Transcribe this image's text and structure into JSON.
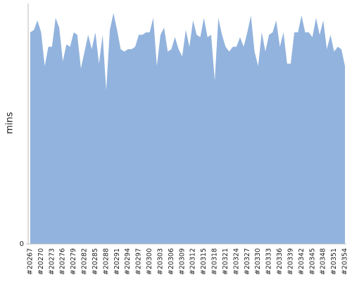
{
  "chart_data": {
    "type": "area",
    "y_label": "mins",
    "color": "#92b3dd",
    "categories": [
      "#20267",
      null,
      null,
      "#20270",
      null,
      null,
      "#20273",
      null,
      null,
      "#20276",
      null,
      null,
      "#20279",
      null,
      null,
      "#20282",
      null,
      null,
      "#20285",
      null,
      null,
      "#20288",
      null,
      null,
      "#20291",
      null,
      null,
      "#20294",
      null,
      null,
      "#20297",
      null,
      null,
      "#20300",
      null,
      null,
      "#20303",
      null,
      null,
      "#20306",
      null,
      null,
      "#20309",
      null,
      null,
      "#20312",
      null,
      null,
      "#20315",
      null,
      null,
      "#20318",
      null,
      null,
      "#20321",
      null,
      null,
      "#20324",
      null,
      null,
      "#20327",
      null,
      null,
      "#20330",
      null,
      null,
      "#20333",
      null,
      null,
      "#20336",
      null,
      null,
      "#20339",
      null,
      null,
      "#20342",
      null,
      null,
      "#20345",
      null,
      null,
      "#20348",
      null,
      null,
      "#20351",
      null,
      null,
      "#20354"
    ],
    "values": [
      88,
      89,
      93,
      88,
      74,
      82,
      82,
      94,
      90,
      76,
      83,
      82,
      88,
      87,
      73,
      80,
      87,
      81,
      88,
      75,
      87,
      64,
      89,
      96,
      89,
      81,
      80,
      81,
      81,
      82,
      87,
      87,
      88,
      88,
      94,
      74,
      87,
      90,
      80,
      81,
      86,
      81,
      78,
      89,
      82,
      93,
      87,
      86,
      94,
      86,
      87,
      68,
      94,
      87,
      82,
      80,
      82,
      82,
      86,
      82,
      88,
      95,
      80,
      74,
      88,
      80,
      87,
      88,
      93,
      82,
      88,
      75,
      75,
      88,
      88,
      95,
      88,
      88,
      86,
      94,
      87,
      93,
      81,
      87,
      80,
      82,
      81,
      74
    ],
    "ylim": [
      0,
      100
    ],
    "yticks": [
      0
    ]
  }
}
